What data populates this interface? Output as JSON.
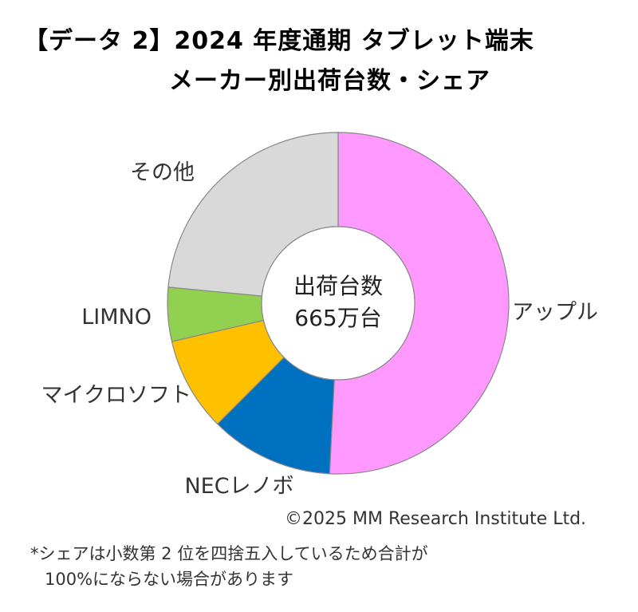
{
  "title_lines": [
    "【データ 2】2024 年度通期 タブレット端末",
    "メーカー別出荷台数・シェア"
  ],
  "chart_data": {
    "type": "pie",
    "donut": true,
    "center_text": [
      "出荷台数",
      "665万台"
    ],
    "slices": [
      {
        "label": "アップル",
        "value": 50.8,
        "color": "#ff99ff"
      },
      {
        "label": "NECレノボ",
        "value": 11.7,
        "color": "#0070c0"
      },
      {
        "label": "マイクロソフト",
        "value": 8.9,
        "color": "#ffc000"
      },
      {
        "label": "LIMNO",
        "value": 5.1,
        "color": "#92d050"
      },
      {
        "label": "その他",
        "value": 23.5,
        "color": "#d9d9d9"
      }
    ]
  },
  "credit": "©2025  MM Research Institute Ltd.",
  "footnote_lines": [
    "*シェアは小数第 2 位を四捨五入しているため合計が",
    "100%にならない場合があります"
  ]
}
